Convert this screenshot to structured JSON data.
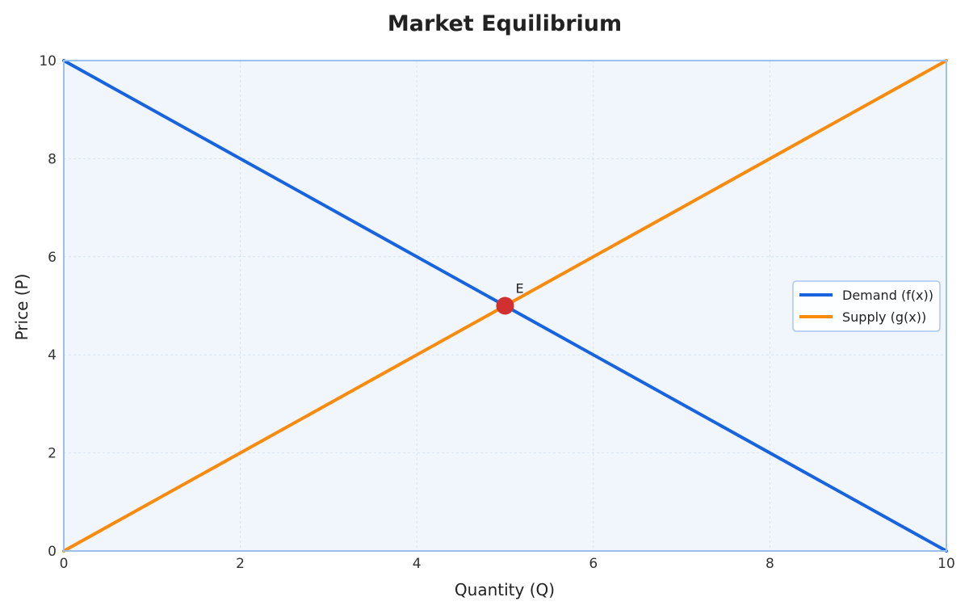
{
  "chart_data": {
    "type": "line",
    "title": "Market Equilibrium",
    "xlabel": "Quantity (Q)",
    "ylabel": "Price (P)",
    "xlim": [
      0,
      10
    ],
    "ylim": [
      0,
      10
    ],
    "x_ticks": [
      0,
      2,
      4,
      6,
      8,
      10
    ],
    "y_ticks": [
      0,
      2,
      4,
      6,
      8,
      10
    ],
    "grid": true,
    "plot_background": "#f0f6fc",
    "frame_color": "#9dbff0",
    "legend_position": "center-right",
    "series": [
      {
        "name": "Demand (f(x))",
        "color": "#1763e0",
        "points": [
          [
            0,
            10
          ],
          [
            10,
            0
          ]
        ]
      },
      {
        "name": "Supply (g(x))",
        "color": "#f88a0c",
        "points": [
          [
            0,
            0
          ],
          [
            10,
            10
          ]
        ]
      }
    ],
    "annotations": [
      {
        "label": "E",
        "x": 5,
        "y": 5,
        "marker_color": "#d03030"
      }
    ]
  }
}
